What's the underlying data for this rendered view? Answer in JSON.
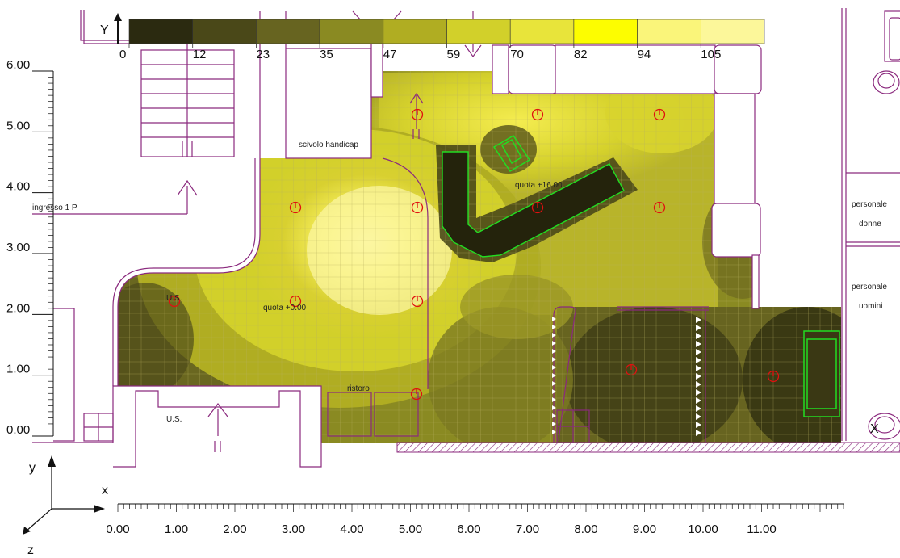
{
  "legend": {
    "axis_letter": "Y",
    "ticks": [
      "0",
      "12",
      "23",
      "35",
      "47",
      "59",
      "70",
      "82",
      "94",
      "105"
    ],
    "colors": [
      "#2b2a10",
      "#4a4818",
      "#676420",
      "#8a8a22",
      "#b0ad22",
      "#d2d02a",
      "#e8e43a",
      "#fdfd00",
      "#faf57a",
      "#fcf79a"
    ]
  },
  "y_axis": {
    "ticks": [
      "6.00",
      "5.00",
      "4.00",
      "3.00",
      "2.00",
      "1.00",
      "0.00"
    ]
  },
  "x_axis": {
    "ticks": [
      "0.00",
      "1.00",
      "2.00",
      "3.00",
      "4.00",
      "5.00",
      "6.00",
      "7.00",
      "8.00",
      "9.00",
      "10.00",
      "11.00"
    ]
  },
  "axes_icon": {
    "y": "y",
    "x": "x",
    "z": "z"
  },
  "corner_label": "X",
  "labels": {
    "scivolo": "scivolo handicap",
    "ingresso": "ingresso 1 P",
    "quota_high": "quota +16.00",
    "quota_low": "quota +0.00",
    "us_upper": "U.S.",
    "us_lower": "U.S.",
    "ristoro": "ristoro",
    "personale_donne_1": "personale",
    "personale_donne_2": "donne",
    "personale_uomini_1": "personale",
    "personale_uomini_2": "uomini"
  },
  "colors": {
    "wall": "#8b2a7e",
    "luminaire": "#e01010",
    "object": "#22dd22"
  }
}
